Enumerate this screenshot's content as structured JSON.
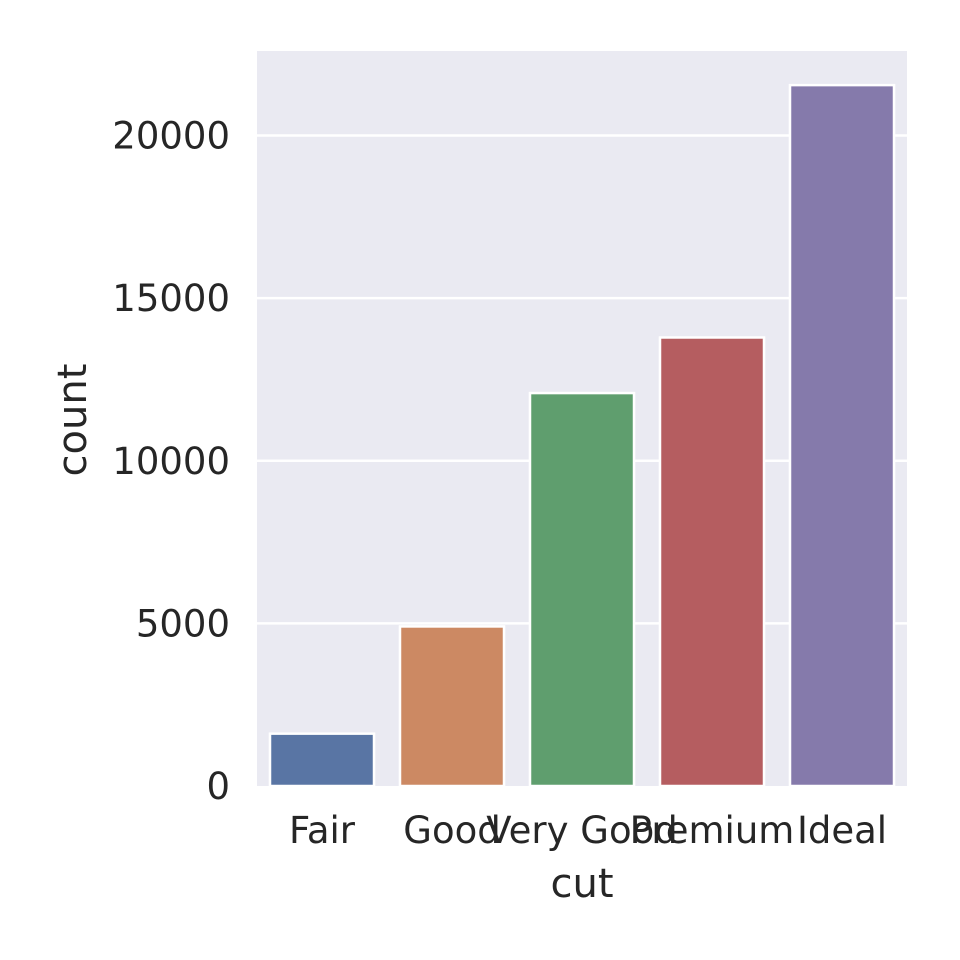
{
  "chart_data": {
    "type": "bar",
    "categories": [
      "Fair",
      "Good",
      "Very Good",
      "Premium",
      "Ideal"
    ],
    "values": [
      1610,
      4906,
      12082,
      13791,
      21551
    ],
    "colors": [
      "#5975a4",
      "#cc8963",
      "#5f9e6e",
      "#b55d60",
      "#857aab"
    ],
    "xlabel": "cut",
    "ylabel": "count",
    "yticks": [
      "0",
      "5000",
      "10000",
      "15000",
      "20000"
    ],
    "ylim": [
      0,
      22600
    ],
    "grid": true,
    "background": "#eaeaf2"
  }
}
